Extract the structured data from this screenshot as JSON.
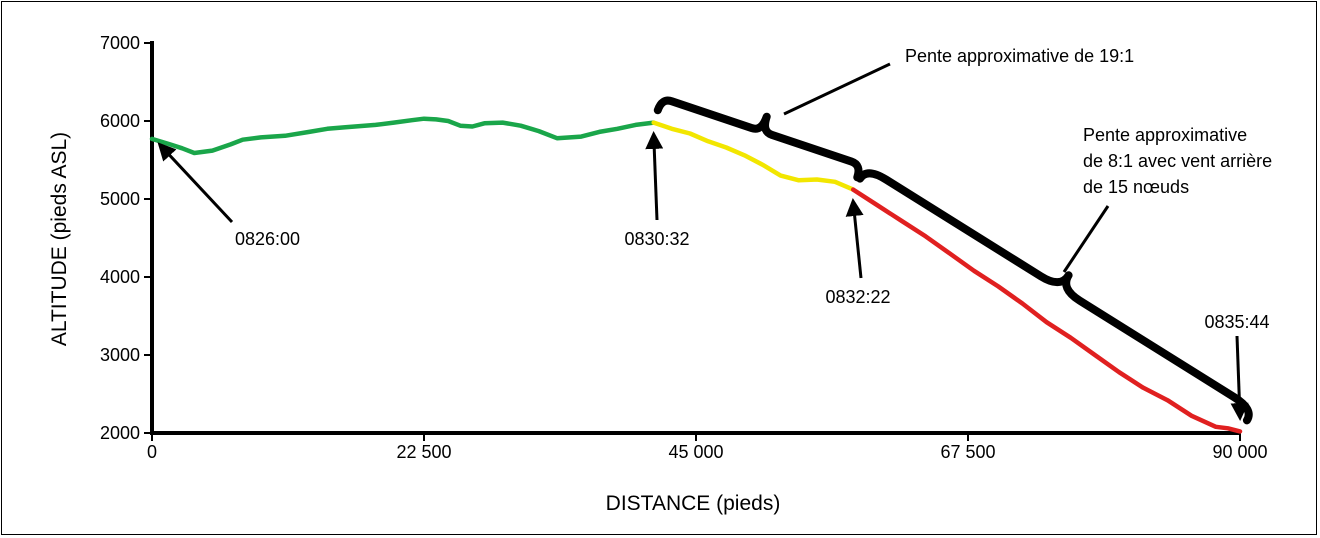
{
  "chart_data": {
    "type": "line",
    "xlabel": "DISTANCE (pieds)",
    "ylabel": "ALTITUDE (pieds ASL)",
    "xlim": [
      0,
      90000
    ],
    "ylim": [
      2000,
      7000
    ],
    "x_ticks": [
      0,
      22500,
      45000,
      67500,
      90000
    ],
    "x_tick_labels": [
      "0",
      "22 500",
      "45 000",
      "67 500",
      "90 000"
    ],
    "y_ticks": [
      2000,
      3000,
      4000,
      5000,
      6000,
      7000
    ],
    "y_tick_labels": [
      "2000",
      "3000",
      "4000",
      "5000",
      "6000",
      "7000"
    ],
    "grid": false,
    "series": [
      {
        "color": "#1aa64a",
        "x": [
          0,
          1500,
          2500,
          3500,
          5000,
          6500,
          7500,
          9000,
          11000,
          13000,
          14500,
          16000,
          18500,
          20000,
          21500,
          22500,
          23500,
          24500,
          25500,
          26500,
          27500,
          29000,
          30500,
          32000,
          33500,
          35500,
          37000,
          38500,
          40000,
          41500
        ],
        "y": [
          5770,
          5700,
          5650,
          5590,
          5620,
          5700,
          5760,
          5790,
          5810,
          5860,
          5900,
          5920,
          5950,
          5980,
          6010,
          6030,
          6020,
          6000,
          5940,
          5930,
          5970,
          5980,
          5940,
          5870,
          5780,
          5800,
          5860,
          5900,
          5950,
          5980
        ]
      },
      {
        "color": "#f2e600",
        "x": [
          41500,
          43000,
          44500,
          46000,
          47500,
          49000,
          50500,
          52000,
          53500,
          55000,
          56500,
          58000
        ],
        "y": [
          5980,
          5900,
          5840,
          5740,
          5660,
          5560,
          5440,
          5300,
          5240,
          5250,
          5220,
          5120
        ]
      },
      {
        "color": "#e02020",
        "x": [
          58000,
          60000,
          62000,
          64000,
          66000,
          68000,
          70000,
          72000,
          74000,
          76000,
          78000,
          80000,
          82000,
          84000,
          86000,
          88000,
          89000,
          90000
        ],
        "y": [
          5120,
          4920,
          4720,
          4520,
          4300,
          4080,
          3880,
          3660,
          3420,
          3220,
          3000,
          2780,
          2580,
          2420,
          2220,
          2080,
          2060,
          2020
        ]
      }
    ],
    "annotations": [
      {
        "label": "0826:00",
        "x": 0,
        "y": 5770
      },
      {
        "label": "0830:32",
        "x": 41500,
        "y": 5980
      },
      {
        "label": "0832:22",
        "x": 58000,
        "y": 5120
      },
      {
        "label": "0835:44",
        "x": 90000,
        "y": 2020
      }
    ],
    "slope_notes": [
      {
        "lines": [
          "Pente approximative de 19:1"
        ]
      },
      {
        "lines": [
          "Pente approximative",
          "de 8:1 avec vent arrière",
          "de 15 nœuds"
        ]
      }
    ]
  }
}
